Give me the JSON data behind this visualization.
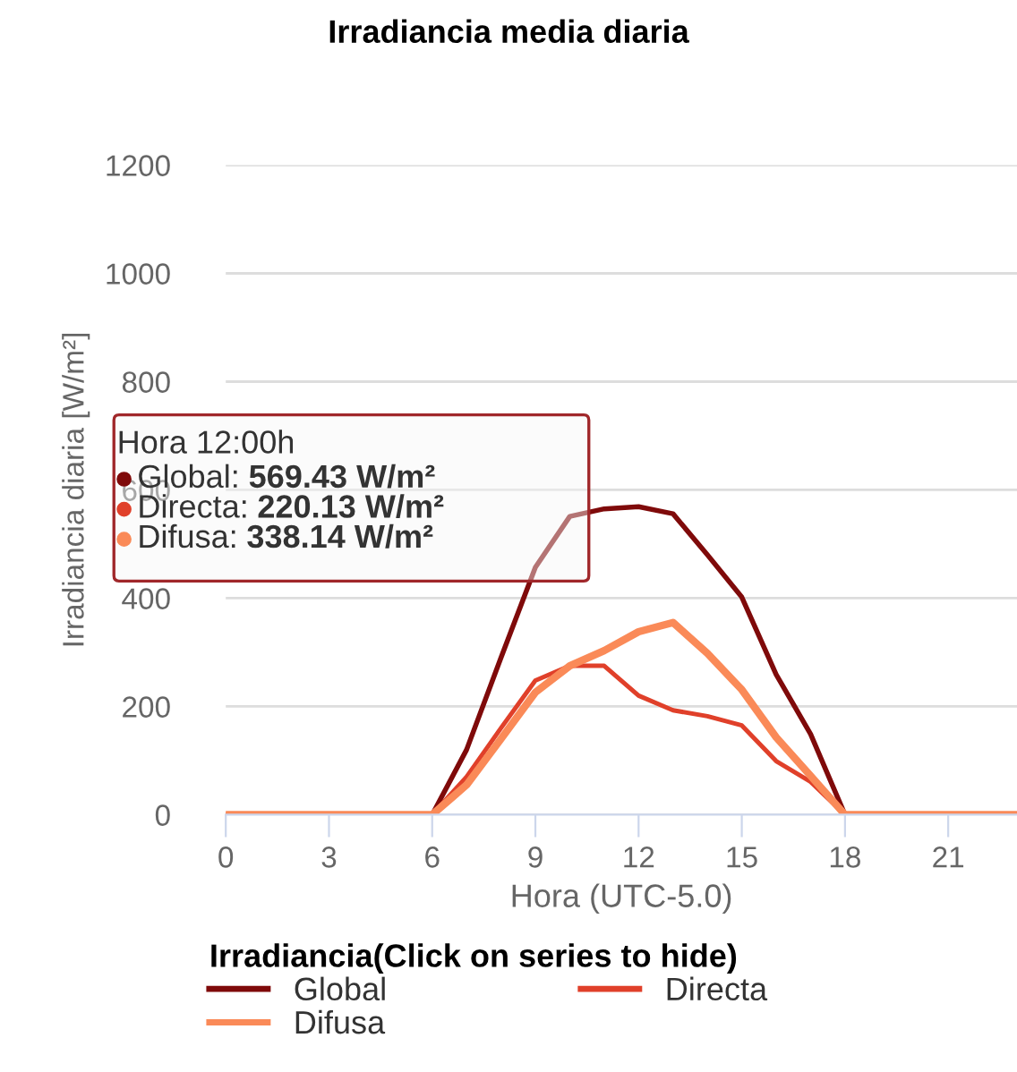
{
  "chart_data": {
    "type": "line",
    "title": "Irradiancia media diaria",
    "xlabel": "Hora (UTC-5.0)",
    "ylabel": "Irradiancia diaria [W/m²]",
    "legend_title": "Irradiancia(Click on series to hide)",
    "x": [
      0,
      1,
      2,
      3,
      4,
      5,
      6,
      7,
      8,
      9,
      10,
      11,
      12,
      13,
      14,
      15,
      16,
      17,
      18,
      19,
      20,
      21,
      22,
      23
    ],
    "series": [
      {
        "name": "Global",
        "color": "#7f0a0a",
        "values": [
          null,
          null,
          null,
          null,
          null,
          null,
          0,
          120,
          290,
          457,
          551,
          565,
          569,
          556,
          480,
          402,
          259,
          149,
          0,
          null,
          null,
          null,
          null,
          null
        ]
      },
      {
        "name": "Directa",
        "color": "#e0402a",
        "values": [
          0,
          0,
          0,
          0,
          0,
          0,
          0,
          70,
          160,
          248,
          275,
          275,
          220,
          193,
          182,
          165,
          99,
          61,
          0,
          0,
          0,
          0,
          0,
          0
        ]
      },
      {
        "name": "Difusa",
        "color": "#fa8a58",
        "values": [
          0,
          0,
          0,
          0,
          0,
          0,
          0,
          55,
          140,
          226,
          275,
          303,
          338,
          355,
          298,
          231,
          143,
          72,
          0,
          0,
          0,
          0,
          0,
          0
        ]
      }
    ],
    "xlim": [
      0,
      23
    ],
    "ylim": [
      0,
      1200
    ],
    "xticks": [
      0,
      3,
      6,
      9,
      12,
      15,
      18,
      21
    ],
    "yticks": [
      0,
      200,
      400,
      600,
      800,
      1000,
      1200
    ],
    "grid": "y",
    "legend": "bottom",
    "annotations": [
      "Hora 12:00h",
      "Global: 569.43 W/m²",
      "Directa: 220.13 W/m²",
      "Difusa: 338.14 W/m²"
    ]
  }
}
